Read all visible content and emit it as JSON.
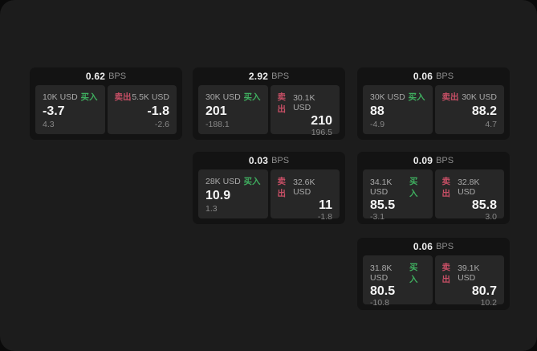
{
  "labels": {
    "buy": "买入",
    "sell": "卖出",
    "bps_unit": "BPS"
  },
  "colors": {
    "panel_bg": "#1c1c1c",
    "card_bg": "#131313",
    "tile_bg": "#272727",
    "buy_green": "#3fae5f",
    "sell_red": "#c84f66"
  },
  "cards": [
    {
      "bps": "0.62",
      "buy": {
        "size": "10K USD",
        "value": "-3.7",
        "delta": "4.3"
      },
      "sell": {
        "size": "5.5K USD",
        "value": "-1.8",
        "delta": "-2.6"
      }
    },
    {
      "bps": "2.92",
      "buy": {
        "size": "30K USD",
        "value": "201",
        "delta": "-188.1"
      },
      "sell": {
        "size": "30.1K USD",
        "value": "210",
        "delta": "196.5"
      }
    },
    {
      "bps": "0.06",
      "buy": {
        "size": "30K USD",
        "value": "88",
        "delta": "-4.9"
      },
      "sell": {
        "size": "30K USD",
        "value": "88.2",
        "delta": "4.7"
      }
    },
    {
      "bps": "0.03",
      "buy": {
        "size": "28K USD",
        "value": "10.9",
        "delta": "1.3"
      },
      "sell": {
        "size": "32.6K USD",
        "value": "11",
        "delta": "-1.8"
      }
    },
    {
      "bps": "0.09",
      "buy": {
        "size": "34.1K USD",
        "value": "85.5",
        "delta": "-3.1"
      },
      "sell": {
        "size": "32.8K USD",
        "value": "85.8",
        "delta": "3.0"
      }
    },
    {
      "bps": "0.06",
      "buy": {
        "size": "31.8K USD",
        "value": "80.5",
        "delta": "-10.8"
      },
      "sell": {
        "size": "39.1K USD",
        "value": "80.7",
        "delta": "10.2"
      }
    }
  ]
}
